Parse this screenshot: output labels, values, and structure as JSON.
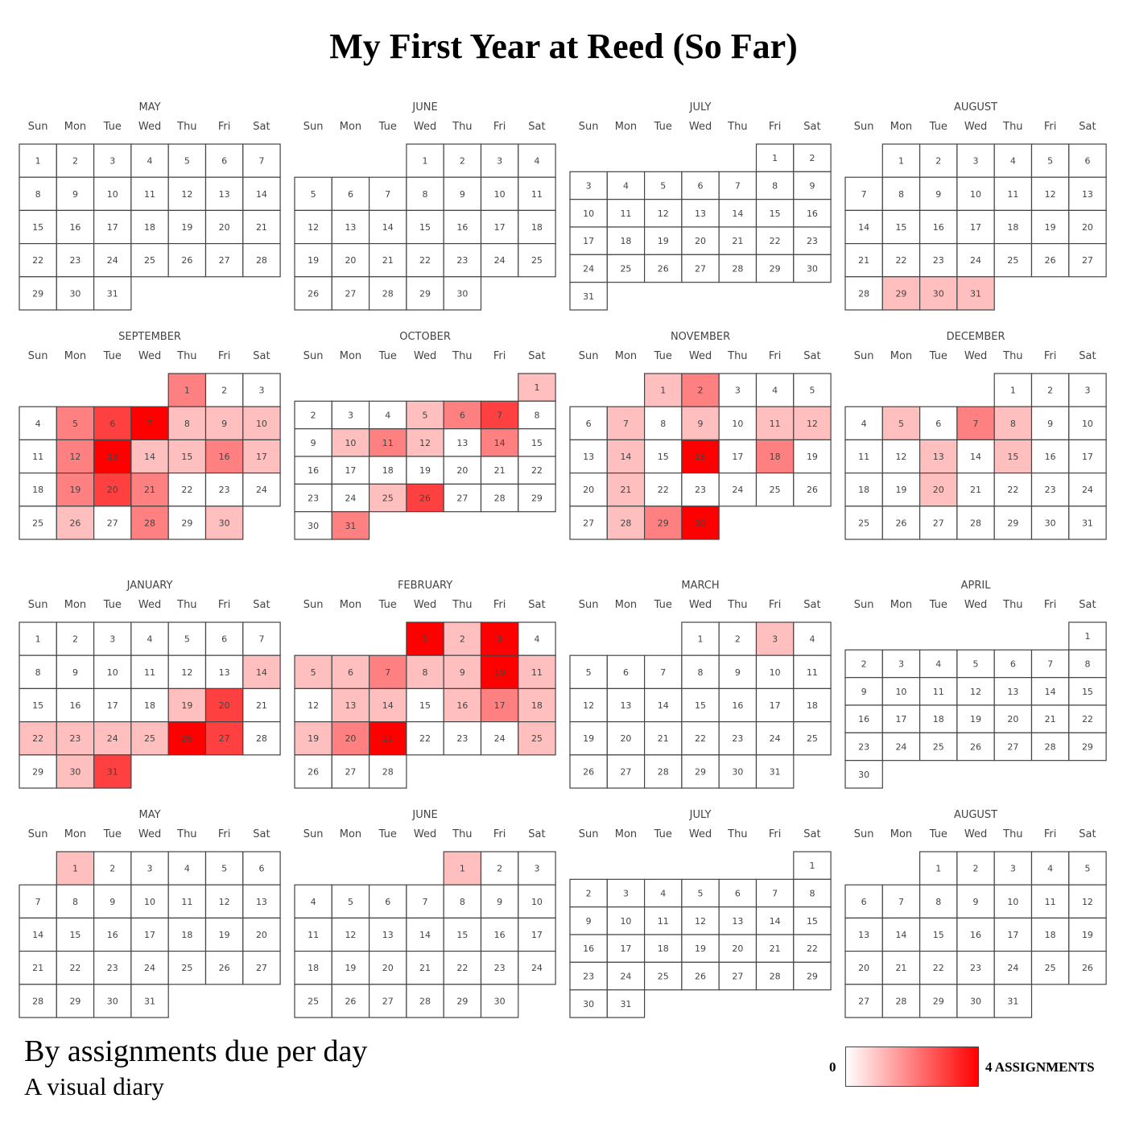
{
  "title": "My First Year at Reed (So Far)",
  "subtitle": "By assignments due per day",
  "caption": "A visual diary",
  "legend": {
    "min_label": "0",
    "max_label": "4 ASSIGNMENTS",
    "min_color": "#ffffff",
    "max_color": "#ff0000"
  },
  "weekday_labels": [
    "Sun",
    "Mon",
    "Tue",
    "Wed",
    "Thu",
    "Fri",
    "Sat"
  ],
  "chart_data": {
    "type": "heatmap",
    "value_range": [
      0,
      4
    ],
    "months": [
      {
        "name": "MAY",
        "start_weekday": 0,
        "days": 31,
        "values": {}
      },
      {
        "name": "JUNE",
        "start_weekday": 3,
        "days": 30,
        "values": {}
      },
      {
        "name": "JULY",
        "start_weekday": 5,
        "days": 31,
        "values": {}
      },
      {
        "name": "AUGUST",
        "start_weekday": 1,
        "days": 31,
        "values": {
          "29": 1,
          "30": 1,
          "31": 1
        }
      },
      {
        "name": "SEPTEMBER",
        "start_weekday": 4,
        "days": 30,
        "values": {
          "1": 2,
          "5": 2,
          "6": 3,
          "7": 4,
          "8": 1,
          "9": 1,
          "10": 1,
          "12": 2,
          "13": 4,
          "14": 1,
          "15": 1,
          "16": 2,
          "17": 1,
          "19": 2,
          "20": 3,
          "21": 2,
          "26": 1,
          "28": 2,
          "30": 1
        }
      },
      {
        "name": "OCTOBER",
        "start_weekday": 6,
        "days": 31,
        "values": {
          "1": 1,
          "5": 1,
          "6": 2,
          "7": 3,
          "10": 1,
          "11": 2,
          "12": 1,
          "14": 2,
          "25": 1,
          "26": 3,
          "31": 2
        }
      },
      {
        "name": "NOVEMBER",
        "start_weekday": 2,
        "days": 30,
        "values": {
          "1": 1,
          "2": 2,
          "7": 1,
          "9": 1,
          "11": 1,
          "12": 1,
          "14": 1,
          "16": 4,
          "18": 2,
          "21": 1,
          "28": 1,
          "29": 2,
          "30": 4
        }
      },
      {
        "name": "DECEMBER",
        "start_weekday": 4,
        "days": 31,
        "values": {
          "5": 1,
          "7": 2,
          "8": 1,
          "13": 1,
          "15": 1,
          "20": 1
        }
      },
      {
        "name": "JANUARY",
        "start_weekday": 0,
        "days": 31,
        "values": {
          "14": 1,
          "19": 1,
          "20": 3,
          "22": 1,
          "23": 1,
          "24": 1,
          "25": 1,
          "26": 4,
          "27": 3,
          "30": 1,
          "31": 3
        }
      },
      {
        "name": "FEBRUARY",
        "start_weekday": 3,
        "days": 28,
        "values": {
          "1": 4,
          "2": 1,
          "3": 4,
          "5": 1,
          "6": 1,
          "7": 2,
          "8": 1,
          "9": 1,
          "10": 4,
          "11": 1,
          "13": 1,
          "14": 1,
          "16": 1,
          "17": 2,
          "18": 1,
          "19": 1,
          "20": 2,
          "21": 4,
          "25": 1
        }
      },
      {
        "name": "MARCH",
        "start_weekday": 3,
        "days": 31,
        "values": {
          "3": 1
        }
      },
      {
        "name": "APRIL",
        "start_weekday": 6,
        "days": 30,
        "values": {}
      },
      {
        "name": "MAY",
        "start_weekday": 1,
        "days": 31,
        "values": {
          "1": 1
        }
      },
      {
        "name": "JUNE",
        "start_weekday": 4,
        "days": 30,
        "values": {
          "1": 1
        }
      },
      {
        "name": "JULY",
        "start_weekday": 6,
        "days": 31,
        "values": {}
      },
      {
        "name": "AUGUST",
        "start_weekday": 2,
        "days": 31,
        "values": {}
      }
    ]
  }
}
